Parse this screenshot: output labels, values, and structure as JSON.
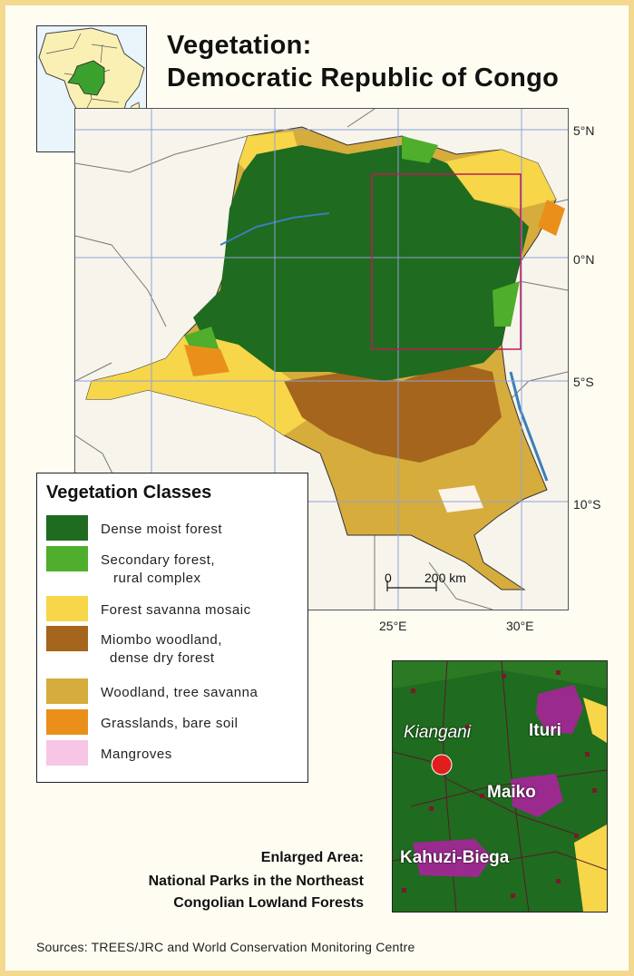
{
  "title": {
    "line1": "Vegetation:",
    "line2": "Democratic Republic of Congo"
  },
  "grid_labels": {
    "lat_5n": "5°N",
    "lat_0": "0°N",
    "lat_5s": "5°S",
    "lat_10s": "10°S",
    "lon_25e": "25°E",
    "lon_30e": "30°E"
  },
  "scale_bar": {
    "start": "0",
    "end": "200 km"
  },
  "legend": {
    "title": "Vegetation Classes",
    "items": [
      {
        "line1": "Dense moist forest",
        "line2": "",
        "color": "#1f6b1f"
      },
      {
        "line1": "Secondary forest,",
        "line2": "rural complex",
        "color": "#4fae2b"
      },
      {
        "line1": "Forest savanna mosaic",
        "line2": "",
        "color": "#f7d64a"
      },
      {
        "line1": "Miombo woodland,",
        "line2": "dense dry forest",
        "color": "#a5651c"
      },
      {
        "line1": "Woodland, tree savanna",
        "line2": "",
        "color": "#d6ac3c"
      },
      {
        "line1": "Grasslands, bare soil",
        "line2": "",
        "color": "#eb8f1b"
      },
      {
        "line1": "Mangroves",
        "line2": "",
        "color": "#f7c6e6"
      }
    ]
  },
  "enlarged_area": {
    "caption_line1": "Enlarged Area:",
    "caption_line2": "National Parks in the Northeast",
    "caption_line3": "Congolian Lowland Forests",
    "town": "Kiangani",
    "parks": [
      "Ituri",
      "Maiko",
      "Kahuzi-Biega"
    ],
    "park_color": "#9b2a8e",
    "town_marker_color": "#e01e1e"
  },
  "sources": "Sources: TREES/JRC and World Conservation Monitoring Centre"
}
